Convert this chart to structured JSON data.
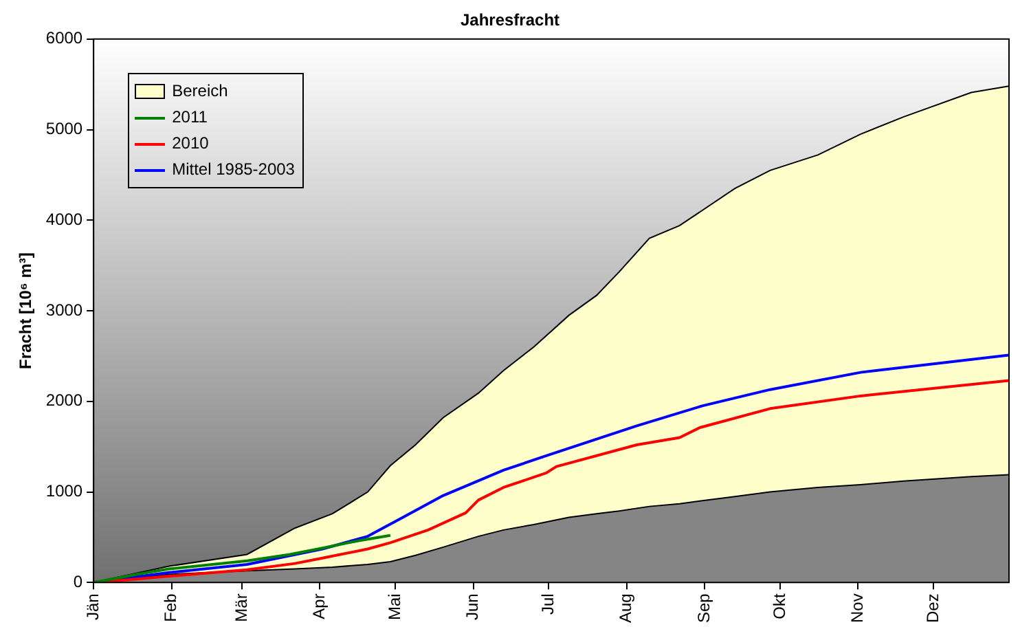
{
  "chart_data": {
    "type": "line",
    "title": "Jahresfracht",
    "ylabel": "Fracht [10⁶ m³]",
    "xlim": [
      "--01-01",
      "--12-31"
    ],
    "xticks": [
      {
        "value": "--01-01",
        "label": "Jän"
      },
      {
        "value": "--02-01",
        "label": "Feb"
      },
      {
        "value": "--03-01",
        "label": "Mär"
      },
      {
        "value": "--04-01",
        "label": "Apr"
      },
      {
        "value": "--05-01",
        "label": "Mai"
      },
      {
        "value": "--06-01",
        "label": "Jun"
      },
      {
        "value": "--07-01",
        "label": "Jul"
      },
      {
        "value": "--08-01",
        "label": "Aug"
      },
      {
        "value": "--09-01",
        "label": "Sep"
      },
      {
        "value": "--10-01",
        "label": "Okt"
      },
      {
        "value": "--11-01",
        "label": "Nov"
      },
      {
        "value": "--12-01",
        "label": "Dez"
      }
    ],
    "ylim": [
      0,
      6000
    ],
    "yticks": [
      0,
      1000,
      2000,
      3000,
      4000,
      5000,
      6000
    ],
    "grid": false,
    "legend": "top left",
    "marker": "none",
    "line_style": "solid",
    "series": [
      {
        "name": "Bereich",
        "type": "area",
        "color": "#ffffcc",
        "x": [
          "--01-01",
          "--01-31",
          "--03-03",
          "--03-22",
          "--04-06",
          "--04-20",
          "--04-29",
          "--05-09",
          "--05-20",
          "--06-03",
          "--06-13",
          "--06-25",
          "--07-09",
          "--07-20",
          "--07-29",
          "--08-10",
          "--08-22",
          "--09-13",
          "--09-27",
          "--10-16",
          "--11-02",
          "--11-19",
          "--12-16",
          "--12-31"
        ],
        "values": [
          0,
          180,
          310,
          600,
          760,
          1000,
          1290,
          1520,
          1820,
          2090,
          2340,
          2600,
          2950,
          3170,
          3430,
          3800,
          3940,
          4350,
          4550,
          4720,
          4950,
          5140,
          5410,
          5480
        ]
      },
      {
        "type": "area",
        "color": "#858585",
        "x": [
          "--01-01",
          "--01-31",
          "--03-03",
          "--03-22",
          "--04-06",
          "--04-20",
          "--04-29",
          "--05-09",
          "--05-20",
          "--06-03",
          "--06-13",
          "--06-25",
          "--07-09",
          "--07-20",
          "--07-29",
          "--08-10",
          "--08-22",
          "--09-13",
          "--09-27",
          "--10-16",
          "--11-02",
          "--11-19",
          "--12-16",
          "--12-31"
        ],
        "values": [
          0,
          90,
          130,
          150,
          170,
          200,
          230,
          300,
          390,
          510,
          580,
          640,
          720,
          760,
          790,
          840,
          870,
          950,
          1000,
          1050,
          1080,
          1120,
          1170,
          1190
        ]
      },
      {
        "name": "2011",
        "color": "#008000",
        "x": [
          "--01-01",
          "--01-18",
          "--01-31",
          "--03-03",
          "--03-20",
          "--04-02",
          "--04-16",
          "--04-29"
        ],
        "values": [
          0,
          90,
          150,
          240,
          310,
          380,
          460,
          520
        ]
      },
      {
        "name": "2010",
        "color": "#ff0000",
        "x": [
          "--01-01",
          "--01-15",
          "--01-31",
          "--03-03",
          "--03-22",
          "--04-02",
          "--04-20",
          "--04-29",
          "--05-14",
          "--05-29",
          "--06-03",
          "--06-13",
          "--06-30",
          "--07-04",
          "--08-05",
          "--08-22",
          "--08-30",
          "--09-27",
          "--11-02",
          "--12-31"
        ],
        "values": [
          0,
          30,
          70,
          140,
          210,
          270,
          370,
          440,
          580,
          770,
          910,
          1050,
          1210,
          1280,
          1520,
          1600,
          1710,
          1920,
          2060,
          2230
        ]
      },
      {
        "name": "Mittel 1985-2003",
        "color": "#0000ff",
        "x": [
          "--01-01",
          "--01-31",
          "--03-03",
          "--04-02",
          "--04-20",
          "--05-04",
          "--05-20",
          "--06-13",
          "--06-30",
          "--08-05",
          "--08-31",
          "--09-27",
          "--11-02",
          "--12-31"
        ],
        "values": [
          0,
          110,
          200,
          370,
          510,
          720,
          960,
          1240,
          1400,
          1730,
          1950,
          2130,
          2320,
          2510
        ]
      }
    ]
  }
}
